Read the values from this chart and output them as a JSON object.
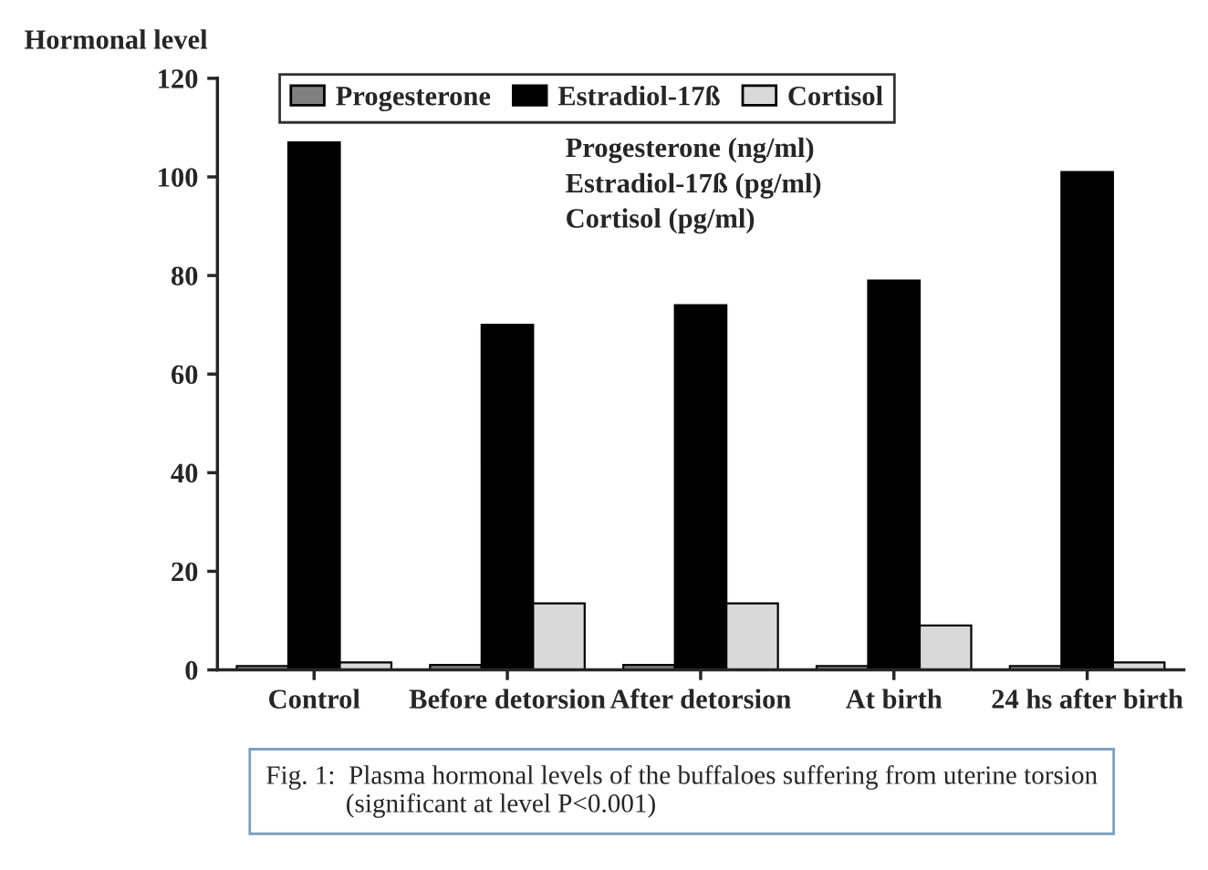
{
  "chart_data": {
    "type": "bar",
    "ylabel": "Hormonal level",
    "categories": [
      "Control",
      "Before detorsion",
      "After detorsion",
      "At birth",
      "24 hs after birth"
    ],
    "series": [
      {
        "name": "Progesterone",
        "color": "#808080",
        "values": [
          0.8,
          1,
          1,
          0.8,
          0.8
        ]
      },
      {
        "name": "Estradiol-17ß",
        "color": "#000000",
        "values": [
          107,
          70,
          74,
          79,
          101
        ]
      },
      {
        "name": "Cortisol",
        "color": "#d9d9d9",
        "values": [
          1.5,
          13.5,
          13.5,
          9,
          1.5
        ]
      }
    ],
    "ylim": [
      0,
      120
    ],
    "yticks": [
      0,
      20,
      40,
      60,
      80,
      100,
      120
    ],
    "grid": false,
    "legend": "top left",
    "annotations": [
      "Progesterone (ng/ml)\nEstradiol-17ß (pg/ml)\nCortisol (pg/ml)",
      "Fig. 1:  Plasma hormonal levels of the buffaloes suffering from uterine torsion\n            (significant at level P<0.001)"
    ]
  }
}
